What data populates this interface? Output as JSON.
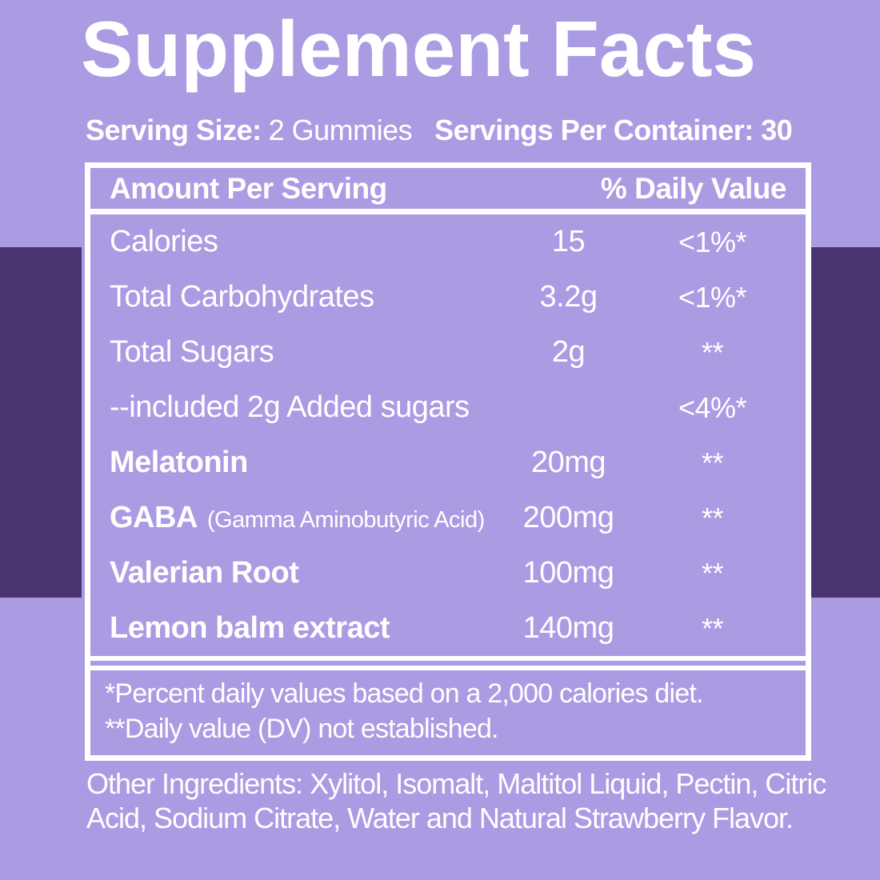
{
  "header": {
    "title": "Supplement Facts",
    "serving_size_label": "Serving Size:",
    "serving_size_value": "2 Gummies",
    "servings_per_container": "Servings Per Container: 30"
  },
  "table": {
    "columns": {
      "amount": "Amount Per Serving",
      "daily_value": "% Daily Value"
    },
    "rows": [
      {
        "label": "Calories",
        "amount": "15",
        "dv": "<1%*"
      },
      {
        "label": "Total Carbohydrates",
        "amount": "3.2g",
        "dv": "<1%*"
      },
      {
        "label": "Total Sugars",
        "amount": "2g",
        "dv": "**"
      },
      {
        "label": "--included 2g Added sugars",
        "amount": "",
        "dv": "<4%*"
      },
      {
        "label": "Melatonin",
        "amount": "20mg",
        "dv": "**"
      },
      {
        "label": "GABA",
        "sublabel": "(Gamma Aminobutyric Acid)",
        "amount": "200mg",
        "dv": "**"
      },
      {
        "label": "Valerian Root",
        "amount": "100mg",
        "dv": "**"
      },
      {
        "label": "Lemon balm extract",
        "amount": "140mg",
        "dv": "**"
      }
    ],
    "footnotes": [
      "*Percent daily values based on a 2,000 calories diet.",
      "**Daily value (DV) not established."
    ]
  },
  "other_ingredients": "Other Ingredients: Xylitol, Isomalt, Maltitol Liquid, Pectin, Citric Acid, Sodium Citrate, Water and Natural Strawberry Flavor.",
  "colors": {
    "background": "#ab9be3",
    "band": "#4b3570",
    "text": "#ffffff",
    "table_border": "#ffffff"
  }
}
